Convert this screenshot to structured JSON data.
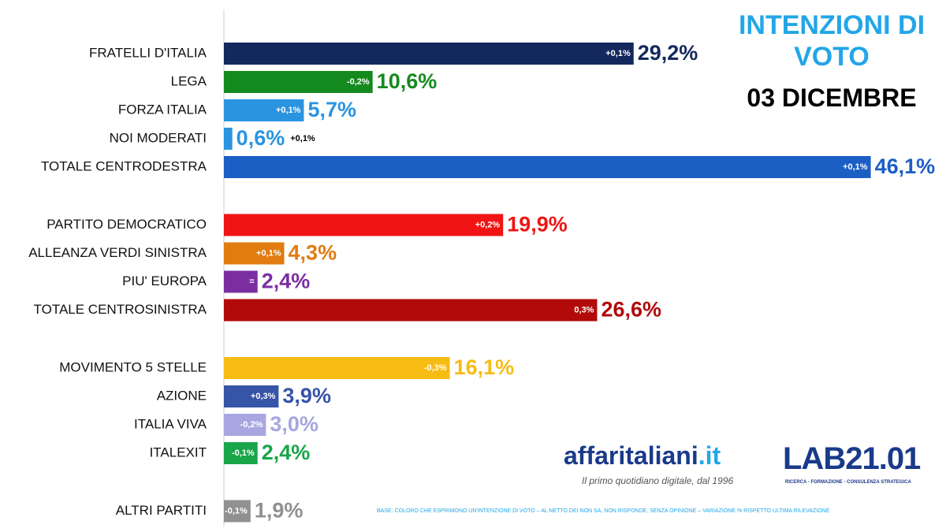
{
  "chart_data": {
    "type": "bar",
    "orientation": "horizontal",
    "title": "INTENZIONI DI VOTO",
    "subtitle": "03 DICEMBRE",
    "categories": [
      "FRATELLI D'ITALIA",
      "LEGA",
      "FORZA ITALIA",
      "NOI MODERATI",
      "TOTALE CENTRODESTRA",
      "PARTITO DEMOCRATICO",
      "ALLEANZA VERDI SINISTRA",
      "PIU' EUROPA",
      "TOTALE CENTROSINISTRA",
      "MOVIMENTO 5 STELLE",
      "AZIONE",
      "ITALIA VIVA",
      "ITALEXIT",
      "ALTRI PARTITI"
    ],
    "values": [
      29.2,
      10.6,
      5.7,
      0.6,
      46.1,
      19.9,
      4.3,
      2.4,
      26.6,
      16.1,
      3.9,
      3.0,
      2.4,
      1.9
    ],
    "value_labels": [
      "29,2%",
      "10,6%",
      "5,7%",
      "0,6%",
      "46,1%",
      "19,9%",
      "4,3%",
      "2,4%",
      "26,6%",
      "16,1%",
      "3,9%",
      "3,0%",
      "2,4%",
      "1,9%"
    ],
    "changes": [
      "+0,1%",
      "-0,2%",
      "+0,1%",
      "+0,1%",
      "+0,1%",
      "+0,2%",
      "+0,1%",
      "=",
      "0,3%",
      "-0,3%",
      "+0,3%",
      "-0,2%",
      "-0,1%",
      "-0,1%"
    ],
    "colors": [
      "#13285c",
      "#158a1e",
      "#2a94e0",
      "#2a94e0",
      "#1b5ec4",
      "#f01414",
      "#e07c10",
      "#7a2ea0",
      "#b20a0a",
      "#f7bc14",
      "#3654a8",
      "#a8a6e0",
      "#19a64a",
      "#909090"
    ],
    "brand": {
      "name": "affaritaliani",
      "tld": ".it",
      "tagline": "Il primo quotidiano digitale, dal 1996"
    },
    "lab": {
      "name": "LAB21.01",
      "tagline": "RICERCA - FORMAZIONE - CONSULENZA STRATEGICA"
    },
    "note": "BASE: COLORO CHE ESPRIMONO UN'INTENZIONE DI VOTO – AL NETTO DEI NON SA, NON RISPONDE, SENZA OPINIONE – VARIAZIONE % RISPETTO ULTIMA RILEVAZIONE"
  }
}
